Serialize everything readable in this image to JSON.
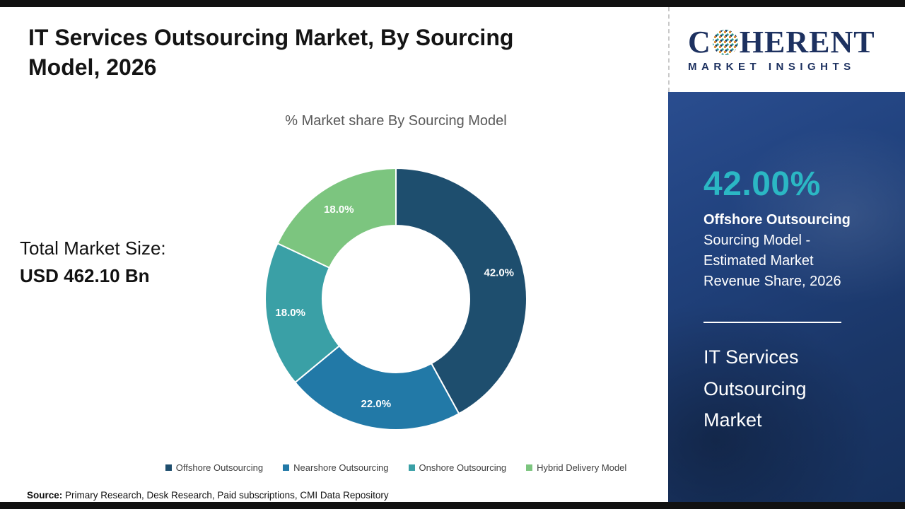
{
  "page": {
    "title": "IT Services Outsourcing Market, By Sourcing Model, 2026",
    "total_market_label": "Total Market Size:",
    "total_market_value": "USD 462.10 Bn",
    "source_label": "Source:",
    "source_text": " Primary Research, Desk Research, Paid subscriptions, CMI Data Repository"
  },
  "chart_data": {
    "type": "pie",
    "donut": true,
    "title": "% Market share By Sourcing Model",
    "categories": [
      "Offshore Outsourcing",
      "Nearshore Outsourcing",
      "Onshore Outsourcing",
      "Hybrid Delivery Model"
    ],
    "values": [
      42.0,
      22.0,
      18.0,
      18.0
    ],
    "labels": [
      "42.0%",
      "22.0%",
      "18.0%",
      "18.0%"
    ],
    "colors": [
      "#1e4e6e",
      "#2279a7",
      "#3aa0a6",
      "#7cc57f"
    ],
    "start_angle_deg": -90,
    "direction": "clockwise",
    "inner_radius_ratio": 0.56,
    "legend_position": "bottom"
  },
  "sidebar": {
    "logo": {
      "brand_c": "C",
      "brand_rest": "HERENT",
      "icon": "globe-dots-icon",
      "subtitle": "MARKET INSIGHTS",
      "text_color": "#1d3160"
    },
    "highlight_value": "42.00%",
    "highlight_title": "Offshore Outsourcing",
    "highlight_desc": "Sourcing Model - Estimated Market Revenue Share, 2026",
    "market_name": "IT Services Outsourcing Market",
    "accent_color": "#2bb7c4",
    "panel_color": "#20417c"
  }
}
